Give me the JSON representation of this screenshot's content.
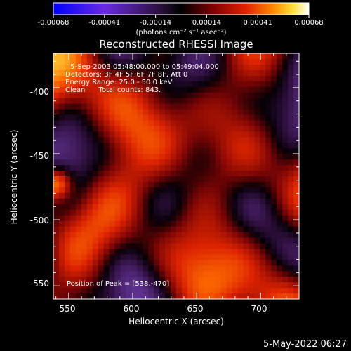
{
  "colorbar": {
    "ticks": [
      "-0.00068",
      "-0.00041",
      "-0.00014",
      "0.00014",
      "0.00041",
      "0.00068"
    ],
    "unit_label": "(photons cm⁻² s⁻¹ asec⁻²)"
  },
  "chart_data": {
    "type": "heatmap",
    "title": "Reconstructed RHESSI Image",
    "xlabel": "Heliocentric X (arcsec)",
    "ylabel": "Heliocentric Y (arcsec)",
    "xlim": [
      538,
      730
    ],
    "ylim": [
      -560,
      -374
    ],
    "x_ticks": [
      550,
      600,
      650,
      700
    ],
    "y_ticks": [
      -400,
      -450,
      -500,
      -550
    ],
    "color_range": [
      -0.00068,
      0.00068
    ],
    "annotations": [
      "5-Sep-2003 05:48:00.000 to 05:49:04.000",
      "Detectors: 3F 4F 5F 6F 7F 8F, Att 0",
      "Energy Range: 25.0 - 50.0 keV",
      "Clean      Total counts: 843.",
      "Position of Peak = [538,-470]"
    ]
  },
  "footer": {
    "timestamp": "5-May-2022 06:27"
  },
  "colors": {
    "background": "#000000",
    "colormap": [
      "#1010ff",
      "#7b2cd0",
      "#2a1038",
      "#000000",
      "#5a0a0a",
      "#c21a00",
      "#ff6a00",
      "#ffd23a",
      "#ffffff"
    ]
  }
}
